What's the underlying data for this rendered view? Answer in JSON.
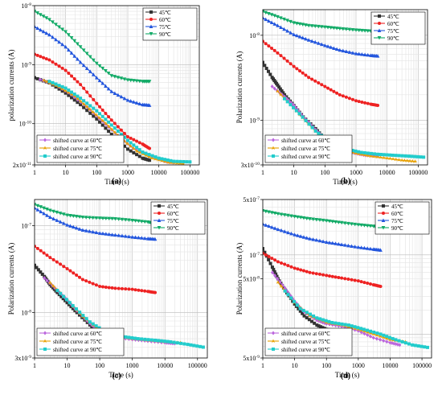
{
  "figure": {
    "series_colors": {
      "45℃": "#333333",
      "60℃": "#ee2222",
      "75℃": "#2255dd",
      "90℃": "#11aa66",
      "shifted curve at 60℃": "#bb66dd",
      "shifted curve at 75℃": "#e8a000",
      "shifted curve at 90℃": "#22cccc"
    }
  },
  "chart_data": [
    {
      "type": "line",
      "panel_label": "(a)",
      "xlabel": "Time (s)",
      "ylabel": "polarization currents (A)",
      "xscale": "log",
      "yscale": "log",
      "xlim": [
        1,
        200000
      ],
      "ylim": [
        2e-11,
        1e-08
      ],
      "grid": true,
      "x_ticks": [
        "1",
        "10",
        "100",
        "1000",
        "10000",
        "100000"
      ],
      "y_ticks": [
        {
          "label": "10",
          "sup": "-8",
          "value": 1e-08
        },
        {
          "label": "10",
          "sup": "-9",
          "value": 1e-09
        },
        {
          "label": "10",
          "sup": "-10",
          "value": 1e-10
        },
        {
          "label": "2x10",
          "sup": "-11",
          "value": 2e-11
        }
      ],
      "legend_main_position": "top-right",
      "legend_shift_position": "bottom-left",
      "series": [
        {
          "name": "45℃",
          "x": [
            1,
            3,
            10,
            30,
            100,
            300,
            1000,
            3000,
            5000
          ],
          "y": [
            6e-10,
            4.9e-10,
            3.3e-10,
            2.1e-10,
            1.2e-10,
            6.6e-11,
            3.7e-11,
            2.6e-11,
            2.4e-11
          ]
        },
        {
          "name": "60℃",
          "x": [
            1,
            3,
            10,
            30,
            100,
            300,
            1000,
            3000,
            5000
          ],
          "y": [
            1.5e-09,
            1.2e-09,
            8e-10,
            4.6e-10,
            2.2e-10,
            1.15e-10,
            6e-11,
            4.5e-11,
            3.8e-11
          ]
        },
        {
          "name": "75℃",
          "x": [
            1,
            3,
            10,
            30,
            100,
            300,
            1000,
            3000,
            5000
          ],
          "y": [
            4.4e-09,
            3.2e-09,
            2e-09,
            1.1e-09,
            6e-10,
            3.5e-10,
            2.5e-10,
            2.1e-10,
            2.05e-10
          ]
        },
        {
          "name": "90℃",
          "x": [
            1,
            3,
            10,
            30,
            100,
            300,
            1000,
            3000,
            5000
          ],
          "y": [
            8e-09,
            5.8e-09,
            3.6e-09,
            2e-09,
            1.05e-09,
            6.5e-10,
            5.5e-10,
            5.2e-10,
            5.2e-10
          ]
        },
        {
          "name": "shifted curve at 60℃",
          "x": [
            1.5,
            5,
            15,
            50,
            150,
            500,
            1500,
            5000,
            15000,
            30000
          ],
          "y": [
            5.6e-10,
            4.5e-10,
            3.1e-10,
            1.9e-10,
            1.1e-10,
            6.2e-11,
            3.8e-11,
            2.9e-11,
            2.3e-11,
            2.2e-11
          ]
        },
        {
          "name": "shifted curve at 75℃",
          "x": [
            2,
            6,
            20,
            60,
            200,
            600,
            2000,
            6000,
            20000,
            60000
          ],
          "y": [
            5.4e-10,
            4.2e-10,
            2.9e-10,
            1.75e-10,
            1e-10,
            5.6e-11,
            3.4e-11,
            2.6e-11,
            2.2e-11,
            2.1e-11
          ]
        },
        {
          "name": "shifted curve at 90℃",
          "x": [
            3,
            10,
            30,
            100,
            300,
            1000,
            3000,
            10000,
            30000,
            100000
          ],
          "y": [
            5.2e-10,
            4e-10,
            2.7e-10,
            1.65e-10,
            9.5e-11,
            5.2e-11,
            3.3e-11,
            2.6e-11,
            2.3e-11,
            2.25e-11
          ]
        }
      ]
    },
    {
      "type": "line",
      "panel_label": "(b)",
      "xlabel": "Time (s)",
      "ylabel": "Polarization currents (A)",
      "xscale": "log",
      "yscale": "log",
      "xlim": [
        1,
        200000
      ],
      "ylim": [
        3e-10,
        2e-08
      ],
      "grid": true,
      "x_ticks": [
        "1",
        "10",
        "100",
        "1000",
        "10000",
        "100000"
      ],
      "y_ticks": [
        {
          "label": "10",
          "sup": "-8",
          "value": 1e-08
        },
        {
          "label": "10",
          "sup": "-9",
          "value": 1e-09
        },
        {
          "label": "3x10",
          "sup": "-10",
          "value": 3e-10
        }
      ],
      "legend_main_position": "top-right",
      "legend_shift_position": "bottom-left",
      "series": [
        {
          "name": "45℃",
          "x": [
            1,
            2,
            3,
            5,
            10,
            20,
            50,
            100,
            200,
            500
          ],
          "y": [
            4.8e-09,
            3.2e-09,
            2.6e-09,
            2e-09,
            1.5e-09,
            1.1e-09,
            8e-10,
            6e-10,
            5.3e-10,
            5e-10
          ]
        },
        {
          "name": "60℃",
          "x": [
            1,
            3,
            10,
            30,
            100,
            300,
            1000,
            3000,
            5000
          ],
          "y": [
            8.5e-09,
            6.2e-09,
            4.3e-09,
            3.2e-09,
            2.5e-09,
            2e-09,
            1.7e-09,
            1.55e-09,
            1.5e-09
          ]
        },
        {
          "name": "75℃",
          "x": [
            1,
            3,
            10,
            30,
            100,
            300,
            1000,
            3000,
            5000
          ],
          "y": [
            1.6e-08,
            1.3e-08,
            1.02e-08,
            8.8e-09,
            7.6e-09,
            6.7e-09,
            6.1e-09,
            5.8e-09,
            5.7e-09
          ]
        },
        {
          "name": "90℃",
          "x": [
            1,
            3,
            10,
            30,
            100,
            300,
            1000,
            3000,
            5000
          ],
          "y": [
            1.9e-08,
            1.65e-08,
            1.4e-08,
            1.3e-08,
            1.25e-08,
            1.2e-08,
            1.15e-08,
            1.12e-08,
            1.1e-08
          ]
        },
        {
          "name": "shifted curve at 60℃",
          "x": [
            2,
            5,
            10,
            20,
            50,
            100,
            200,
            500,
            1000,
            2000,
            5000
          ],
          "y": [
            2.5e-09,
            1.9e-09,
            1.5e-09,
            1.1e-09,
            7.8e-10,
            6e-10,
            5e-10,
            4.4e-10,
            4.1e-10,
            3.9e-10,
            3.8e-10
          ]
        },
        {
          "name": "shifted curve at 75℃",
          "x": [
            3,
            10,
            30,
            100,
            300,
            1000,
            3000,
            10000,
            30000,
            80000
          ],
          "y": [
            2.2e-09,
            1.4e-09,
            9e-10,
            5.8e-10,
            4.6e-10,
            4.1e-10,
            3.8e-10,
            3.6e-10,
            3.4e-10,
            3.3e-10
          ]
        },
        {
          "name": "shifted curve at 90℃",
          "x": [
            5,
            15,
            50,
            150,
            500,
            1500,
            5000,
            15000,
            50000,
            150000
          ],
          "y": [
            1.8e-09,
            1.2e-09,
            7.5e-10,
            5.5e-10,
            4.6e-10,
            4.2e-10,
            4e-10,
            3.9e-10,
            3.8e-10,
            3.7e-10
          ]
        }
      ]
    },
    {
      "type": "line",
      "panel_label": "(c)",
      "xlabel": "Time (s)",
      "ylabel": "Polarization currents (A)",
      "xscale": "log",
      "yscale": "log",
      "xlim": [
        1,
        200000
      ],
      "ylim": [
        3e-09,
        2e-07
      ],
      "grid": true,
      "x_ticks": [
        "1",
        "10",
        "100",
        "1000",
        "10000",
        "100000"
      ],
      "y_ticks": [
        {
          "label": "10",
          "sup": "-7",
          "value": 1e-07
        },
        {
          "label": "10",
          "sup": "-8",
          "value": 1e-08
        },
        {
          "label": "3x10",
          "sup": "-9",
          "value": 3e-09
        }
      ],
      "legend_main_position": "top-right",
      "legend_shift_position": "bottom-left",
      "series": [
        {
          "name": "45℃",
          "x": [
            1,
            2,
            3,
            5,
            10,
            20,
            50,
            100,
            200,
            300
          ],
          "y": [
            3.5e-08,
            2.6e-08,
            2.1e-08,
            1.7e-08,
            1.3e-08,
            1e-08,
            7.2e-09,
            5.8e-09,
            5.2e-09,
            5e-09
          ]
        },
        {
          "name": "60℃",
          "x": [
            1,
            3,
            10,
            30,
            100,
            300,
            1000,
            3000,
            5000
          ],
          "y": [
            5.8e-08,
            4.3e-08,
            3.2e-08,
            2.4e-08,
            2e-08,
            1.9e-08,
            1.85e-08,
            1.75e-08,
            1.7e-08
          ]
        },
        {
          "name": "75℃",
          "x": [
            1,
            3,
            10,
            30,
            100,
            300,
            1000,
            3000,
            5000
          ],
          "y": [
            1.6e-07,
            1.25e-07,
            1.02e-07,
            8.9e-08,
            8.2e-08,
            7.8e-08,
            7.4e-08,
            7.1e-08,
            7e-08
          ]
        },
        {
          "name": "90℃",
          "x": [
            1,
            3,
            10,
            30,
            100,
            300,
            1000,
            3000,
            5000
          ],
          "y": [
            1.75e-07,
            1.5e-07,
            1.32e-07,
            1.25e-07,
            1.22e-07,
            1.2e-07,
            1.15e-07,
            1.1e-07,
            1.05e-07
          ]
        },
        {
          "name": "shifted curve at 60℃",
          "x": [
            2,
            5,
            10,
            20,
            50,
            100,
            300,
            1000,
            3000,
            10000,
            20000
          ],
          "y": [
            2.5e-08,
            1.8e-08,
            1.4e-08,
            1.05e-08,
            7.5e-09,
            6e-09,
            5.2e-09,
            4.9e-09,
            4.7e-09,
            4.5e-09,
            4.4e-09
          ]
        },
        {
          "name": "shifted curve at 75℃",
          "x": [
            3,
            10,
            30,
            100,
            300,
            1000,
            3000,
            10000,
            30000
          ],
          "y": [
            2.2e-08,
            1.4e-08,
            9e-09,
            6.2e-09,
            5.4e-09,
            5e-09,
            4.8e-09,
            4.6e-09,
            4.5e-09
          ]
        },
        {
          "name": "shifted curve at 90℃",
          "x": [
            5,
            15,
            50,
            150,
            500,
            1500,
            5000,
            15000,
            50000,
            150000
          ],
          "y": [
            1.8e-08,
            1.2e-08,
            7.8e-09,
            6e-09,
            5.3e-09,
            5e-09,
            4.8e-09,
            4.6e-09,
            4.3e-09,
            4e-09
          ]
        }
      ]
    },
    {
      "type": "line",
      "panel_label": "(d)",
      "xlabel": "Time (s)",
      "ylabel": "Polarization currents (A)",
      "xscale": "log",
      "yscale": "log",
      "xlim": [
        1,
        200000
      ],
      "ylim": [
        5e-09,
        5e-07
      ],
      "grid": true,
      "x_ticks": [
        "1",
        "10",
        "100",
        "1000",
        "10000",
        "100000"
      ],
      "y_ticks": [
        {
          "label": "5x10",
          "sup": "-7",
          "value": 5e-07
        },
        {
          "label": "10",
          "sup": "-7",
          "value": 1e-07
        },
        {
          "label": "5x10",
          "sup": "-8",
          "value": 5e-08
        },
        {
          "label": "5x10",
          "sup": "-9",
          "value": 5e-09
        }
      ],
      "legend_main_position": "top-right",
      "legend_shift_position": "bottom-left",
      "series": [
        {
          "name": "45℃",
          "x": [
            1,
            2,
            3,
            5,
            10,
            20,
            50,
            100,
            200,
            500
          ],
          "y": [
            1.2e-07,
            7e-08,
            5e-08,
            3.6e-08,
            2.4e-08,
            1.7e-08,
            1.3e-08,
            1.15e-08,
            1.1e-08,
            1.05e-08
          ]
        },
        {
          "name": "60℃",
          "x": [
            1,
            3,
            10,
            30,
            100,
            300,
            1000,
            3000,
            5000
          ],
          "y": [
            1.05e-07,
            8.2e-08,
            6.8e-08,
            6e-08,
            5.5e-08,
            5.1e-08,
            4.7e-08,
            4.2e-08,
            4e-08
          ]
        },
        {
          "name": "75℃",
          "x": [
            1,
            3,
            10,
            30,
            100,
            300,
            1000,
            3000,
            5000
          ],
          "y": [
            2.45e-07,
            2.1e-07,
            1.8e-07,
            1.6e-07,
            1.45e-07,
            1.35e-07,
            1.25e-07,
            1.18e-07,
            1.15e-07
          ]
        },
        {
          "name": "90℃",
          "x": [
            1,
            3,
            10,
            30,
            100,
            300,
            1000,
            3000,
            5000
          ],
          "y": [
            3.6e-07,
            3.3e-07,
            3.05e-07,
            2.85e-07,
            2.7e-07,
            2.55e-07,
            2.4e-07,
            2.3e-07,
            2.25e-07
          ]
        },
        {
          "name": "shifted curve at 60℃",
          "x": [
            2,
            5,
            10,
            20,
            50,
            100,
            300,
            1000,
            3000,
            10000,
            20000
          ],
          "y": [
            6e-08,
            3.8e-08,
            2.6e-08,
            1.9e-08,
            1.5e-08,
            1.35e-08,
            1.25e-08,
            1.1e-08,
            9e-09,
            7.8e-09,
            7.3e-09
          ]
        },
        {
          "name": "shifted curve at 75℃",
          "x": [
            3,
            10,
            30,
            100,
            300,
            1000,
            3000,
            10000,
            30000
          ],
          "y": [
            4.5e-08,
            2.5e-08,
            1.7e-08,
            1.4e-08,
            1.3e-08,
            1.15e-08,
            1e-08,
            8.5e-09,
            8e-09
          ]
        },
        {
          "name": "shifted curve at 90℃",
          "x": [
            5,
            15,
            50,
            150,
            500,
            1500,
            5000,
            15000,
            50000,
            150000
          ],
          "y": [
            3.5e-08,
            2.1e-08,
            1.6e-08,
            1.4e-08,
            1.3e-08,
            1.15e-08,
            1e-08,
            8.5e-09,
            7.3e-09,
            6.8e-09
          ]
        }
      ]
    }
  ]
}
